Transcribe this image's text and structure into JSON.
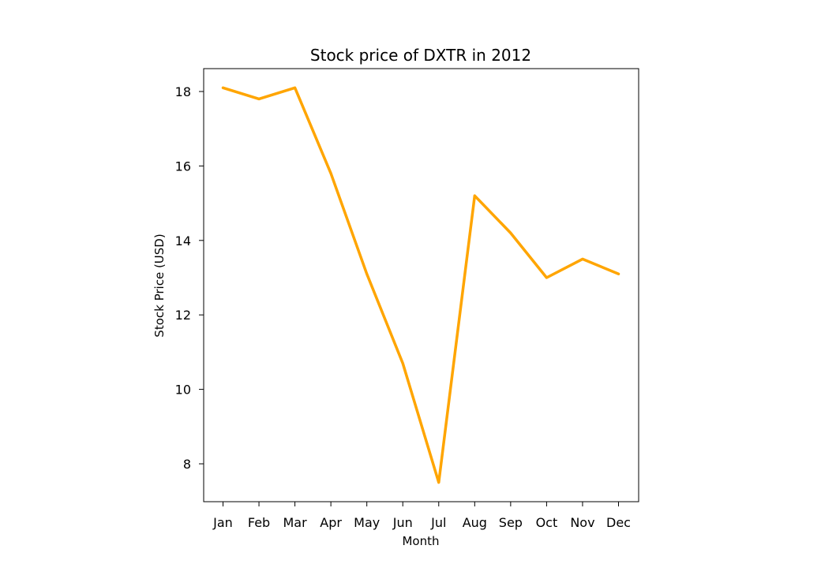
{
  "chart_data": {
    "type": "line",
    "title": "Stock price of DXTR in 2012",
    "xlabel": "Month",
    "ylabel": "Stock Price (USD)",
    "categories": [
      "Jan",
      "Feb",
      "Mar",
      "Apr",
      "May",
      "Jun",
      "Jul",
      "Aug",
      "Sep",
      "Oct",
      "Nov",
      "Dec"
    ],
    "series": [
      {
        "values": [
          18.1,
          17.8,
          18.1,
          15.8,
          13.1,
          10.7,
          7.5,
          15.2,
          14.2,
          13.0,
          13.5,
          13.1
        ]
      }
    ],
    "yticks": [
      8,
      10,
      12,
      14,
      16,
      18
    ],
    "ylim": [
      7.0,
      18.6
    ],
    "grid": false,
    "line_color": "#FFA500"
  }
}
